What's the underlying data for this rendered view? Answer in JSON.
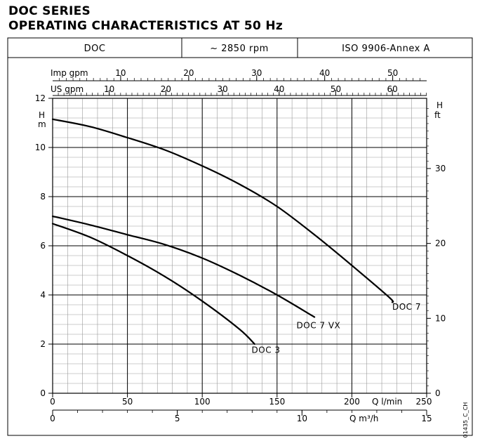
{
  "header": {
    "title_line1": "DOC SERIES",
    "title_line2": "OPERATING CHARACTERISTICS AT 50 Hz",
    "cells": [
      "DOC",
      "~ 2850 rpm",
      "ISO 9906-Annex A"
    ]
  },
  "chart_data": {
    "type": "line",
    "xlabel": "Q l/min",
    "ylabel": "H m",
    "xlim": [
      0,
      250
    ],
    "ylim": [
      0,
      12
    ],
    "x_ticks": [
      0,
      50,
      100,
      150,
      200,
      250
    ],
    "y_ticks": [
      0,
      2,
      4,
      6,
      8,
      10,
      12
    ],
    "grid": true,
    "secondary_axes": {
      "q_m3h": {
        "label": "Q m³/h",
        "ticks": [
          0,
          5,
          10,
          15
        ],
        "factor": 16.6667
      },
      "us_gpm": {
        "label": "US gpm",
        "ticks": [
          10,
          20,
          30,
          40,
          50,
          60
        ],
        "factor": 3.785
      },
      "imp_gpm": {
        "label": "Imp gpm",
        "ticks": [
          10,
          20,
          30,
          40,
          50
        ],
        "factor": 4.546
      },
      "h_ft": {
        "label": "H ft",
        "ticks": [
          0,
          10,
          20,
          30
        ],
        "factor": 0.3048
      }
    },
    "series": [
      {
        "name": "DOC 7",
        "x": [
          0,
          25,
          50,
          75,
          100,
          125,
          150,
          175,
          200,
          225,
          225
        ],
        "y": [
          11.15,
          10.85,
          10.4,
          9.9,
          9.25,
          8.5,
          7.6,
          6.45,
          5.2,
          3.9,
          3.7
        ],
        "label_at": [
          227,
          3.4
        ]
      },
      {
        "name": "DOC 7 VX",
        "x": [
          0,
          25,
          50,
          75,
          100,
          125,
          150,
          175
        ],
        "y": [
          7.2,
          6.85,
          6.45,
          6.05,
          5.5,
          4.8,
          4.0,
          3.1
        ],
        "label_at": [
          163,
          2.65
        ]
      },
      {
        "name": "DOC 3",
        "x": [
          0,
          25,
          50,
          75,
          100,
          125,
          135
        ],
        "y": [
          6.9,
          6.35,
          5.6,
          4.75,
          3.75,
          2.6,
          2.0
        ],
        "label_at": [
          133,
          1.65
        ]
      }
    ]
  },
  "code": "01435_C_CH"
}
